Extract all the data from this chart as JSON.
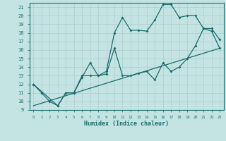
{
  "xlabel": "Humidex (Indice chaleur)",
  "bg_color": "#c4e4e4",
  "line_color": "#1a6b6b",
  "grid_color": "#b0cccc",
  "xlim": [
    -0.5,
    23.5
  ],
  "ylim": [
    9,
    21.5
  ],
  "x_ticks": [
    0,
    1,
    2,
    3,
    4,
    5,
    6,
    7,
    8,
    9,
    10,
    11,
    12,
    13,
    14,
    15,
    16,
    17,
    18,
    19,
    20,
    21,
    22,
    23
  ],
  "y_ticks": [
    9,
    10,
    11,
    12,
    13,
    14,
    15,
    16,
    17,
    18,
    19,
    20,
    21
  ],
  "line1_x": [
    0,
    1,
    2,
    3,
    4,
    5,
    6,
    7,
    8,
    9,
    10,
    11,
    12,
    13,
    14,
    15,
    16,
    17,
    18,
    19,
    20,
    21,
    22,
    23
  ],
  "line1_y": [
    12,
    11,
    10,
    9.5,
    11,
    11,
    13,
    13,
    13,
    13.5,
    18,
    19.8,
    18.3,
    18.3,
    18.2,
    19.5,
    21.3,
    21.3,
    19.8,
    20,
    20,
    18.5,
    18.2,
    16.2
  ],
  "line2_x": [
    0,
    3,
    4,
    5,
    6,
    7,
    8,
    9,
    10,
    11,
    12,
    13,
    14,
    15,
    16,
    17,
    18,
    19,
    20,
    21,
    22,
    23
  ],
  "line2_y": [
    12,
    9.5,
    11,
    11,
    12.8,
    14.5,
    13,
    13.2,
    16.2,
    13,
    13,
    13.3,
    13.5,
    12.5,
    14.5,
    13.5,
    14,
    15,
    16.5,
    18.5,
    18.5,
    17.2
  ],
  "line3_x": [
    0,
    23
  ],
  "line3_y": [
    9.5,
    16.2
  ]
}
